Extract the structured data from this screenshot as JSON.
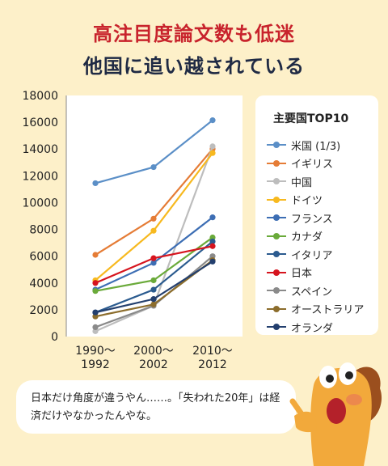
{
  "title_line1": "高注目度論文数も低迷",
  "title_line2": "他国に追い越されている",
  "legend": {
    "title": "主要国TOP10"
  },
  "speech": {
    "text": "日本だけ角度が違うやん……。「失われた20年」は経済だけやなかったんやな。"
  },
  "chart_data": {
    "type": "line",
    "categories": [
      "1990〜1992",
      "2000〜2002",
      "2010〜2012"
    ],
    "category_lines": [
      [
        "1990〜",
        "1992"
      ],
      [
        "2000〜",
        "2002"
      ],
      [
        "2010〜",
        "2012"
      ]
    ],
    "ylim": [
      0,
      18000
    ],
    "yticks": [
      0,
      2000,
      4000,
      6000,
      8000,
      10000,
      12000,
      14000,
      16000,
      18000
    ],
    "grid": false,
    "legend_position": "right",
    "series": [
      {
        "name": "米国 (1/3)",
        "color": "#5b8fc7",
        "values": [
          11450,
          12650,
          16150
        ]
      },
      {
        "name": "イギリス",
        "color": "#e57c36",
        "values": [
          6100,
          8800,
          14000
        ]
      },
      {
        "name": "中国",
        "color": "#bdbdbd",
        "values": [
          400,
          2300,
          14200
        ]
      },
      {
        "name": "ドイツ",
        "color": "#f7b91f",
        "values": [
          4200,
          7900,
          13700
        ]
      },
      {
        "name": "フランス",
        "color": "#3d6eb4",
        "values": [
          3500,
          5500,
          8900
        ]
      },
      {
        "name": "カナダ",
        "color": "#6aaa3a",
        "values": [
          3400,
          4200,
          7400
        ]
      },
      {
        "name": "イタリア",
        "color": "#2b5b8f",
        "values": [
          1800,
          3500,
          7100
        ]
      },
      {
        "name": "日本",
        "color": "#d6141e",
        "values": [
          4000,
          5850,
          6750
        ]
      },
      {
        "name": "スペイン",
        "color": "#8a8a8a",
        "values": [
          700,
          2300,
          6000
        ]
      },
      {
        "name": "オーストラリア",
        "color": "#8c6d2c",
        "values": [
          1500,
          2400,
          5700
        ]
      },
      {
        "name": "オランダ",
        "color": "#233f6e",
        "values": [
          1800,
          2800,
          5600
        ]
      }
    ]
  }
}
